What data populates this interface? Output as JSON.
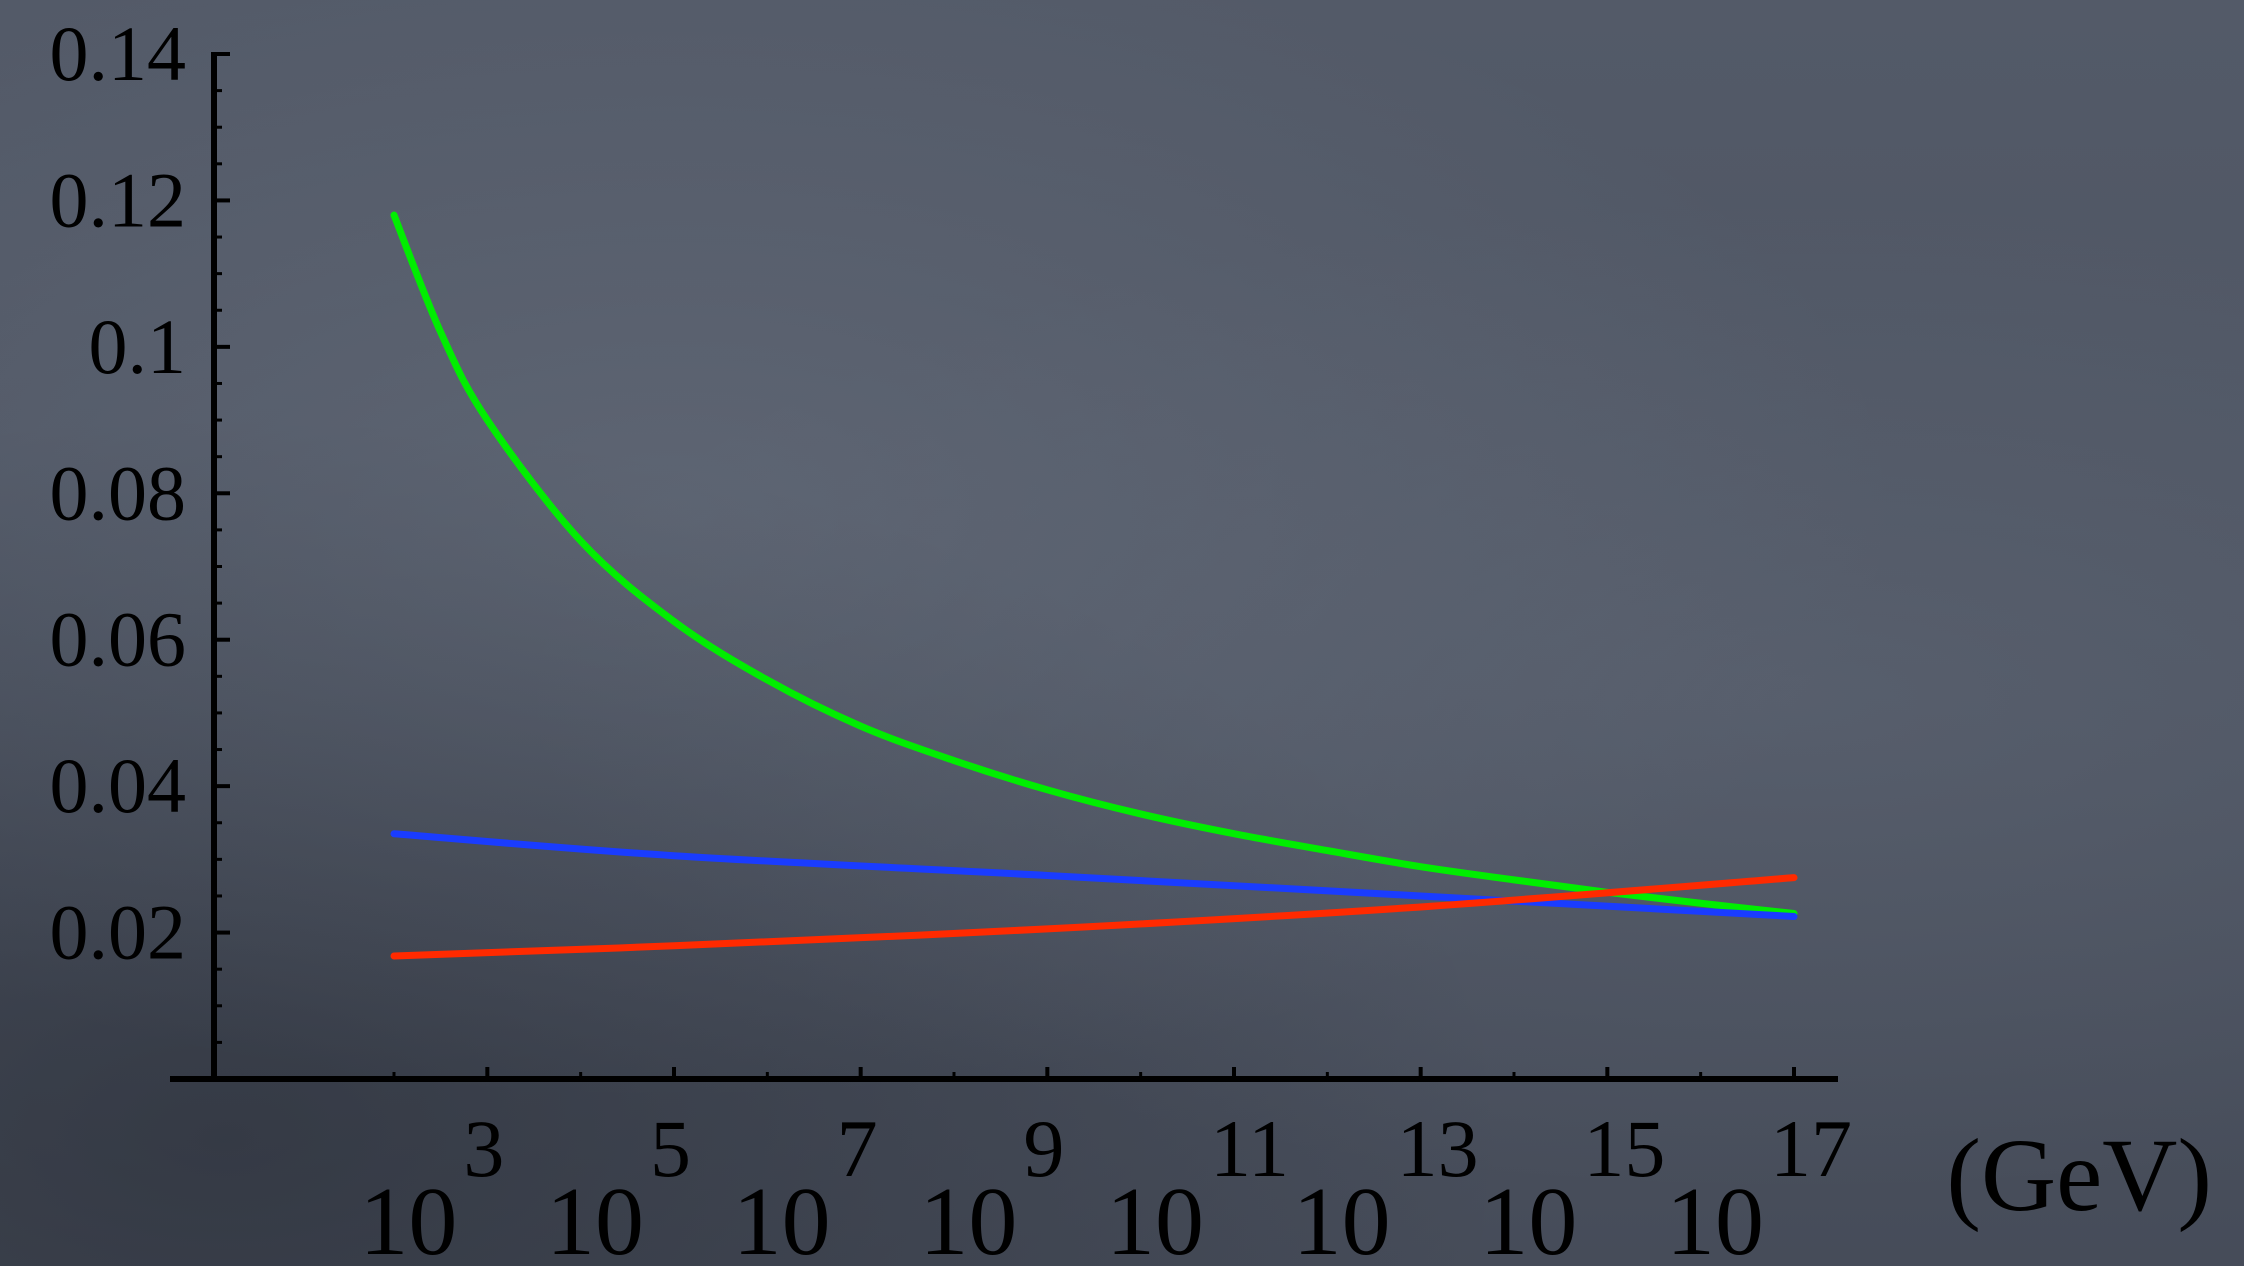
{
  "chart_data": {
    "type": "line",
    "title": "",
    "xlabel": "(GeV)",
    "ylabel": "",
    "x_scale": "log10",
    "xlim_exponent": [
      1.5,
      17.5
    ],
    "ylim": [
      0,
      0.14
    ],
    "y_ticks": [
      0.02,
      0.04,
      0.06,
      0.08,
      0.1,
      0.12,
      0.14
    ],
    "y_tick_labels": [
      "0.02",
      "0.04",
      "0.06",
      "0.08",
      "0.1",
      "0.12",
      "0.14"
    ],
    "x_tick_exponents": [
      3,
      5,
      7,
      9,
      11,
      13,
      15,
      17
    ],
    "x_tick_base": "10",
    "x_tick_exponent_labels": [
      "3",
      "5",
      "7",
      "9",
      "11",
      "13",
      "15",
      "17"
    ],
    "grid": false,
    "legend": "none",
    "series": [
      {
        "color": "#00ee00",
        "x_exponent": [
          2,
          2.5,
          3,
          4,
          5,
          6,
          7,
          8,
          9,
          10,
          11,
          12,
          13,
          14,
          15,
          16,
          17
        ],
        "values": [
          0.118,
          0.102,
          0.09,
          0.0735,
          0.0625,
          0.0545,
          0.0482,
          0.0435,
          0.0395,
          0.0362,
          0.0335,
          0.0312,
          0.029,
          0.0272,
          0.0255,
          0.024,
          0.0226
        ]
      },
      {
        "color": "#1a3cff",
        "x_exponent": [
          2,
          5,
          9,
          13,
          17
        ],
        "values": [
          0.0335,
          0.0305,
          0.0278,
          0.025,
          0.0222
        ]
      },
      {
        "color": "#ff2a00",
        "x_exponent": [
          2,
          5,
          9,
          13,
          17
        ],
        "values": [
          0.0168,
          0.0182,
          0.0205,
          0.0235,
          0.0275
        ]
      }
    ]
  }
}
